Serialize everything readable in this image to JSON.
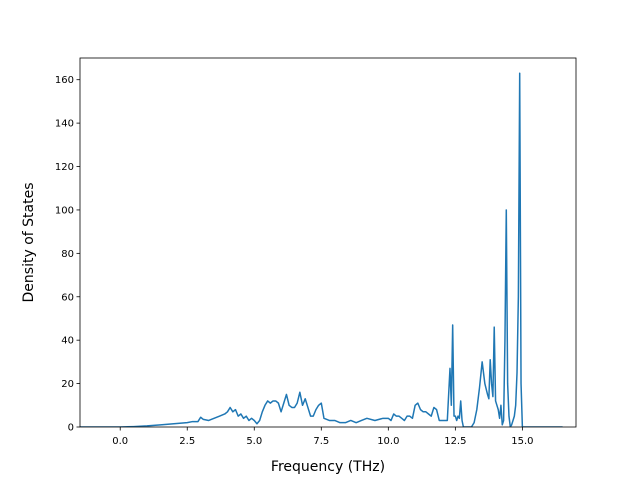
{
  "chart_data": {
    "type": "line",
    "title": "",
    "xlabel": "Frequency (THz)",
    "ylabel": "Density of States",
    "xlim": [
      -1.5,
      17.0
    ],
    "ylim": [
      0,
      170
    ],
    "xticks": [
      0.0,
      2.5,
      5.0,
      7.5,
      10.0,
      12.5,
      15.0
    ],
    "xtick_labels": [
      "0.0",
      "2.5",
      "5.0",
      "7.5",
      "10.0",
      "12.5",
      "15.0"
    ],
    "yticks": [
      0,
      20,
      40,
      60,
      80,
      100,
      120,
      140,
      160
    ],
    "ytick_labels": [
      "0",
      "20",
      "40",
      "60",
      "80",
      "100",
      "120",
      "140",
      "160"
    ],
    "grid": false,
    "line_color": "#1f77b4",
    "series": [
      {
        "x": [
          -1.5,
          -1.0,
          -0.5,
          0.0,
          0.5,
          1.0,
          1.5,
          2.0,
          2.5,
          2.7,
          2.9,
          3.0,
          3.1,
          3.3,
          3.5,
          3.7,
          3.9,
          4.0,
          4.1,
          4.2,
          4.3,
          4.4,
          4.5,
          4.6,
          4.7,
          4.8,
          4.9,
          5.0,
          5.1,
          5.2,
          5.3,
          5.4,
          5.5,
          5.6,
          5.7,
          5.8,
          5.9,
          6.0,
          6.1,
          6.2,
          6.3,
          6.4,
          6.5,
          6.6,
          6.7,
          6.8,
          6.9,
          7.0,
          7.1,
          7.2,
          7.3,
          7.4,
          7.5,
          7.6,
          7.8,
          8.0,
          8.2,
          8.4,
          8.6,
          8.8,
          9.0,
          9.2,
          9.5,
          9.8,
          10.0,
          10.1,
          10.2,
          10.3,
          10.4,
          10.5,
          10.6,
          10.7,
          10.8,
          10.9,
          11.0,
          11.1,
          11.2,
          11.3,
          11.4,
          11.5,
          11.6,
          11.7,
          11.8,
          11.9,
          12.0,
          12.1,
          12.2,
          12.3,
          12.35,
          12.4,
          12.45,
          12.5,
          12.55,
          12.6,
          12.65,
          12.7,
          12.75,
          12.8,
          12.85,
          12.9,
          13.0,
          13.1,
          13.2,
          13.3,
          13.4,
          13.5,
          13.6,
          13.7,
          13.75,
          13.8,
          13.85,
          13.9,
          13.95,
          14.0,
          14.05,
          14.1,
          14.15,
          14.2,
          14.25,
          14.3,
          14.35,
          14.4,
          14.45,
          14.5,
          14.55,
          14.6,
          14.65,
          14.7,
          14.75,
          14.8,
          14.85,
          14.9,
          14.95,
          15.0,
          15.05,
          15.1,
          15.5,
          16.0,
          16.5
        ],
        "y": [
          0,
          0,
          0,
          0,
          0.2,
          0.5,
          1,
          1.5,
          2,
          2.5,
          2.5,
          4.5,
          3.5,
          3,
          4,
          5,
          6,
          7,
          9,
          7,
          8,
          5,
          6,
          4,
          5,
          3,
          4,
          3,
          1.5,
          3,
          7,
          10,
          12,
          11,
          12,
          12,
          11,
          7,
          11,
          15,
          10,
          9,
          9,
          11,
          16,
          10,
          13,
          9,
          5,
          5,
          8,
          10,
          11,
          4,
          3,
          3,
          2,
          2,
          3,
          2,
          3,
          4,
          3,
          4,
          4,
          3,
          6,
          5,
          5,
          4,
          3,
          5,
          5,
          4,
          10,
          11,
          8,
          7,
          7,
          6,
          5,
          9,
          8,
          3,
          3,
          3,
          3,
          27,
          10,
          47,
          5,
          5,
          3,
          5,
          4,
          12,
          3,
          0,
          0,
          0,
          0,
          0,
          2,
          8,
          18,
          30,
          20,
          15,
          13,
          31,
          20,
          14,
          46,
          12,
          10,
          8,
          4,
          10,
          1,
          3,
          40,
          100,
          20,
          5,
          0,
          1,
          3,
          5,
          10,
          25,
          60,
          163,
          20,
          0,
          0,
          0,
          0,
          0,
          0
        ]
      }
    ]
  }
}
